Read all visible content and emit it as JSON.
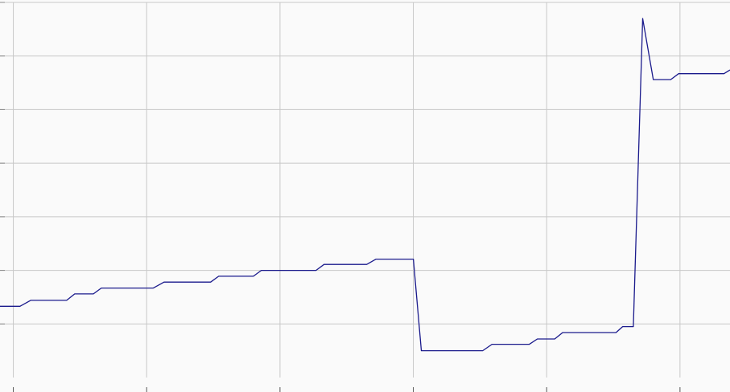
{
  "chart_data": {
    "type": "line",
    "title": "",
    "xlabel": "",
    "ylabel": "",
    "grid": true,
    "legend": "none",
    "xlim": [
      -0.1,
      5.375
    ],
    "ylim": [
      0,
      7
    ],
    "x_ticks": [
      0,
      1,
      2,
      3,
      4,
      5
    ],
    "y_ticks": [
      1,
      2,
      3,
      4,
      5,
      6,
      7
    ],
    "series": [
      {
        "color": "#1a1a8c",
        "points": [
          [
            -0.1,
            1.33
          ],
          [
            0.05,
            1.33
          ],
          [
            0.13,
            1.44
          ],
          [
            0.4,
            1.44
          ],
          [
            0.46,
            1.56
          ],
          [
            0.6,
            1.56
          ],
          [
            0.66,
            1.67
          ],
          [
            1.05,
            1.67
          ],
          [
            1.13,
            1.78
          ],
          [
            1.48,
            1.78
          ],
          [
            1.54,
            1.89
          ],
          [
            1.8,
            1.89
          ],
          [
            1.86,
            2.0
          ],
          [
            2.27,
            2.0
          ],
          [
            2.33,
            2.11
          ],
          [
            2.65,
            2.11
          ],
          [
            2.72,
            2.21
          ],
          [
            3.0,
            2.21
          ],
          [
            3.06,
            0.5
          ],
          [
            3.52,
            0.5
          ],
          [
            3.59,
            0.62
          ],
          [
            3.87,
            0.62
          ],
          [
            3.93,
            0.72
          ],
          [
            4.06,
            0.72
          ],
          [
            4.12,
            0.84
          ],
          [
            4.52,
            0.84
          ],
          [
            4.57,
            0.95
          ],
          [
            4.65,
            0.95
          ],
          [
            4.72,
            6.7
          ],
          [
            4.8,
            5.56
          ],
          [
            4.93,
            5.56
          ],
          [
            4.99,
            5.67
          ],
          [
            5.33,
            5.67
          ],
          [
            5.375,
            5.74
          ]
        ]
      }
    ]
  }
}
